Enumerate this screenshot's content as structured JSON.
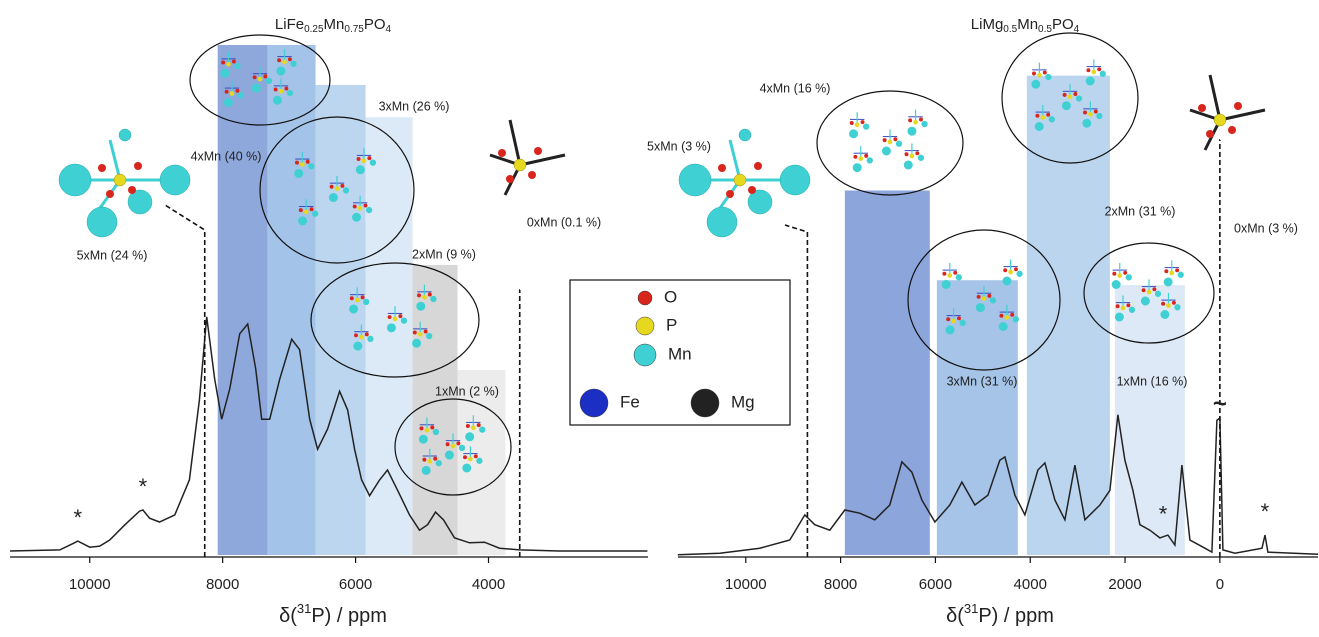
{
  "chart_data": [
    {
      "type": "line",
      "title": [
        "LiFe",
        "0.25",
        "Mn",
        "0.75",
        "PO",
        "4"
      ],
      "xlabel": [
        "δ(",
        "31",
        "P) / ppm"
      ],
      "color": "#222222",
      "xlim": [
        11200,
        1600
      ],
      "ylim": [
        0,
        100
      ],
      "xticks": [
        10000,
        8000,
        6000,
        4000
      ],
      "x": [
        11200,
        10450,
        10230,
        10180,
        10000,
        9850,
        9700,
        9470,
        9250,
        9200,
        9100,
        8950,
        8720,
        8500,
        8350,
        8240,
        8120,
        8015,
        7894,
        7744,
        7624,
        7503,
        7413,
        7293,
        7142,
        6962,
        6842,
        6691,
        6571,
        6421,
        6240,
        6120,
        6014,
        5909,
        5789,
        5639,
        5519,
        5368,
        5188,
        5038,
        4917,
        4797,
        4677,
        4512,
        4286,
        4060,
        3835,
        3534,
        2933,
        1609
      ],
      "values": [
        1.1,
        1.3,
        2.6,
        2.9,
        1.8,
        2.0,
        3.1,
        5.9,
        8.4,
        8.6,
        7.1,
        6.4,
        7.7,
        14.1,
        28.7,
        43.9,
        32.5,
        25.2,
        30.7,
        40.8,
        42.6,
        34.4,
        25.2,
        25.2,
        32.5,
        39.8,
        37.9,
        25.2,
        19.7,
        23.4,
        30.3,
        26.9,
        19.6,
        14.1,
        11.2,
        14.1,
        15.9,
        12.2,
        7.7,
        4.9,
        5.9,
        8.2,
        6.8,
        3.5,
        2.6,
        2.7,
        1.6,
        1.3,
        1.1,
        1.1
      ],
      "bands": [
        {
          "x": [
            8075,
            7323
          ],
          "top": 93.6,
          "color": "#8fa8dc"
        },
        {
          "x": [
            7323,
            6602
          ],
          "top": 93.6,
          "color": "#a3c3e8"
        },
        {
          "x": [
            6602,
            5850
          ],
          "top": 86.3,
          "color": "#bcd6ef"
        },
        {
          "x": [
            5850,
            5143
          ],
          "top": 80.4,
          "color": "#dce9f6"
        },
        {
          "x": [
            5143,
            4466
          ],
          "top": 53.4,
          "color": "#d7d7d7"
        },
        {
          "x": [
            4466,
            3744
          ],
          "top": 34.2,
          "color": "#ececec"
        }
      ],
      "labels": [
        "4xMn (40 %)",
        "3xMn (26 %)",
        "2xMn (9 %)",
        "1xMn (2 %)"
      ],
      "markers": [
        {
          "x": 8270,
          "label": "5xMn (24 %)"
        },
        {
          "x": 3530,
          "label": "0xMn (0.1 %)"
        }
      ],
      "stars": {
        "label": "*",
        "x": [
          10180,
          9200
        ]
      }
    },
    {
      "type": "line",
      "title": [
        "LiMg",
        "0.5",
        "Mn",
        "0.5",
        "PO",
        "4"
      ],
      "xlabel": [
        "δ(",
        "31",
        "P) / ppm"
      ],
      "color": "#222222",
      "xlim": [
        11430,
        -2070
      ],
      "ylim": [
        0,
        100
      ],
      "xticks": [
        10000,
        8000,
        6000,
        4000,
        2000,
        0
      ],
      "x": [
        11435,
        10549,
        9705,
        9072,
        8755,
        8544,
        8228,
        7911,
        7595,
        7278,
        6962,
        6708,
        6497,
        6286,
        6012,
        5696,
        5442,
        5168,
        4894,
        4641,
        4535,
        4324,
        4113,
        3839,
        3691,
        3480,
        3269,
        3058,
        2847,
        2531,
        2320,
        2151,
        2003,
        1834,
        1687,
        1476,
        1265,
        1096,
        948,
        800,
        632,
        315,
        167,
        62,
        0,
        -65,
        -318,
        -888,
        -951,
        -1014,
        -2069
      ],
      "values": [
        0.4,
        0.7,
        1.6,
        3.1,
        7.7,
        5.9,
        4.9,
        8.6,
        8.0,
        6.8,
        9.5,
        17.4,
        15.5,
        10.4,
        6.4,
        9.5,
        13.7,
        9.5,
        11.3,
        17.7,
        18.3,
        11.3,
        7.7,
        15.9,
        17.2,
        10.4,
        6.8,
        16.8,
        6.8,
        9.5,
        12.2,
        26.0,
        17.7,
        12.2,
        5.9,
        4.9,
        3.5,
        4.0,
        2.2,
        16.8,
        3.1,
        1.6,
        0.9,
        25.0,
        25.4,
        1.3,
        0.7,
        1.6,
        4.0,
        0.9,
        0.5
      ],
      "bands": [
        {
          "x": [
            7911,
            6118
          ],
          "top": 67.0,
          "color": "#8ca5db"
        },
        {
          "x": [
            5970,
            4262
          ],
          "top": 50.6,
          "color": "#a5c4e8"
        },
        {
          "x": [
            4072,
            2320
          ],
          "top": 88.0,
          "color": "#bcd5ef"
        },
        {
          "x": [
            2215,
            738
          ],
          "top": 49.7,
          "color": "#dde9f6"
        }
      ],
      "labels": [
        "4xMn (16 %)",
        "3xMn (31 %)",
        "2xMn (31 %)",
        "1xMn (16 %)"
      ],
      "markers": [
        {
          "x": 8700,
          "label": "5xMn (3 %)"
        },
        {
          "x": 0,
          "label": "0xMn (3 %)"
        }
      ],
      "stars": {
        "label": "*",
        "x": [
          1200,
          -950
        ]
      },
      "break_mark": "~"
    }
  ],
  "legend": {
    "items": [
      {
        "name": "O",
        "color": "#d9261c"
      },
      {
        "name": "P",
        "color": "#e6d81e"
      },
      {
        "name": "Mn",
        "color": "#3fd0d4"
      },
      {
        "name": "Fe",
        "color": "#1c2fc4"
      },
      {
        "name": "Mg",
        "color": "#222222"
      }
    ]
  }
}
